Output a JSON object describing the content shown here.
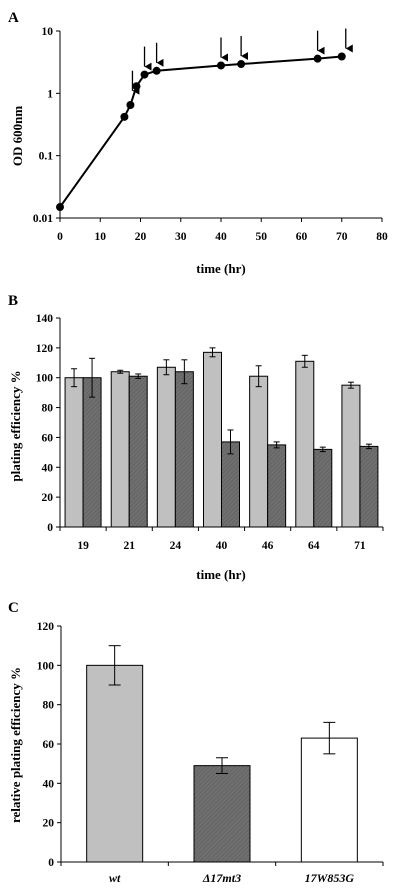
{
  "chart_data": [
    {
      "panel": "A",
      "type": "line",
      "xlabel": "time (hr)",
      "ylabel": "OD 600nm",
      "yscale": "log",
      "xlim": [
        0,
        80
      ],
      "ylim": [
        0.01,
        10
      ],
      "x_ticks": [
        "0",
        "10",
        "20",
        "30",
        "40",
        "50",
        "60",
        "70",
        "80"
      ],
      "y_ticks": [
        "0.01",
        "0.1",
        "1",
        "10"
      ],
      "series": [
        {
          "x": [
            0,
            16,
            17.5,
            19,
            21,
            24,
            40,
            45,
            64,
            70
          ],
          "y": [
            0.015,
            0.42,
            0.65,
            1.3,
            2.0,
            2.3,
            2.8,
            2.95,
            3.6,
            3.9
          ]
        }
      ],
      "arrows_at_x": [
        18,
        21,
        24,
        40,
        45,
        64,
        71
      ]
    },
    {
      "panel": "B",
      "type": "bar",
      "xlabel": "time (hr)",
      "ylabel": "plating efficiency %",
      "ylim": [
        0,
        140
      ],
      "y_ticks": [
        "0",
        "20",
        "40",
        "60",
        "80",
        "100",
        "120",
        "140"
      ],
      "categories": [
        "19",
        "21",
        "24",
        "40",
        "46",
        "64",
        "71"
      ],
      "series": [
        {
          "values": [
            100,
            104,
            107,
            117,
            101,
            111,
            95
          ],
          "errors": [
            6,
            1,
            5,
            3,
            7,
            4,
            2
          ],
          "fill": "light"
        },
        {
          "values": [
            100,
            101,
            104,
            57,
            55,
            52,
            54
          ],
          "errors": [
            13,
            1.5,
            8,
            8,
            2,
            1.5,
            1.5
          ],
          "fill": "dark-hatched"
        }
      ]
    },
    {
      "panel": "C",
      "type": "bar",
      "ylabel": "relative plating efficiency %",
      "ylim": [
        0,
        120
      ],
      "y_ticks": [
        "0",
        "20",
        "40",
        "60",
        "80",
        "100",
        "120"
      ],
      "categories": [
        "wt",
        "Δ17mt3",
        "17W853G"
      ],
      "values": [
        100,
        49,
        63
      ],
      "errors": [
        10,
        4,
        8
      ],
      "fills": [
        "light",
        "dark-hatched",
        "white"
      ]
    }
  ],
  "colors": {
    "light_bar": "#c0c0c0",
    "dark_bar": "#6f6f6f",
    "white_bar": "#ffffff",
    "ink": "#000000"
  }
}
